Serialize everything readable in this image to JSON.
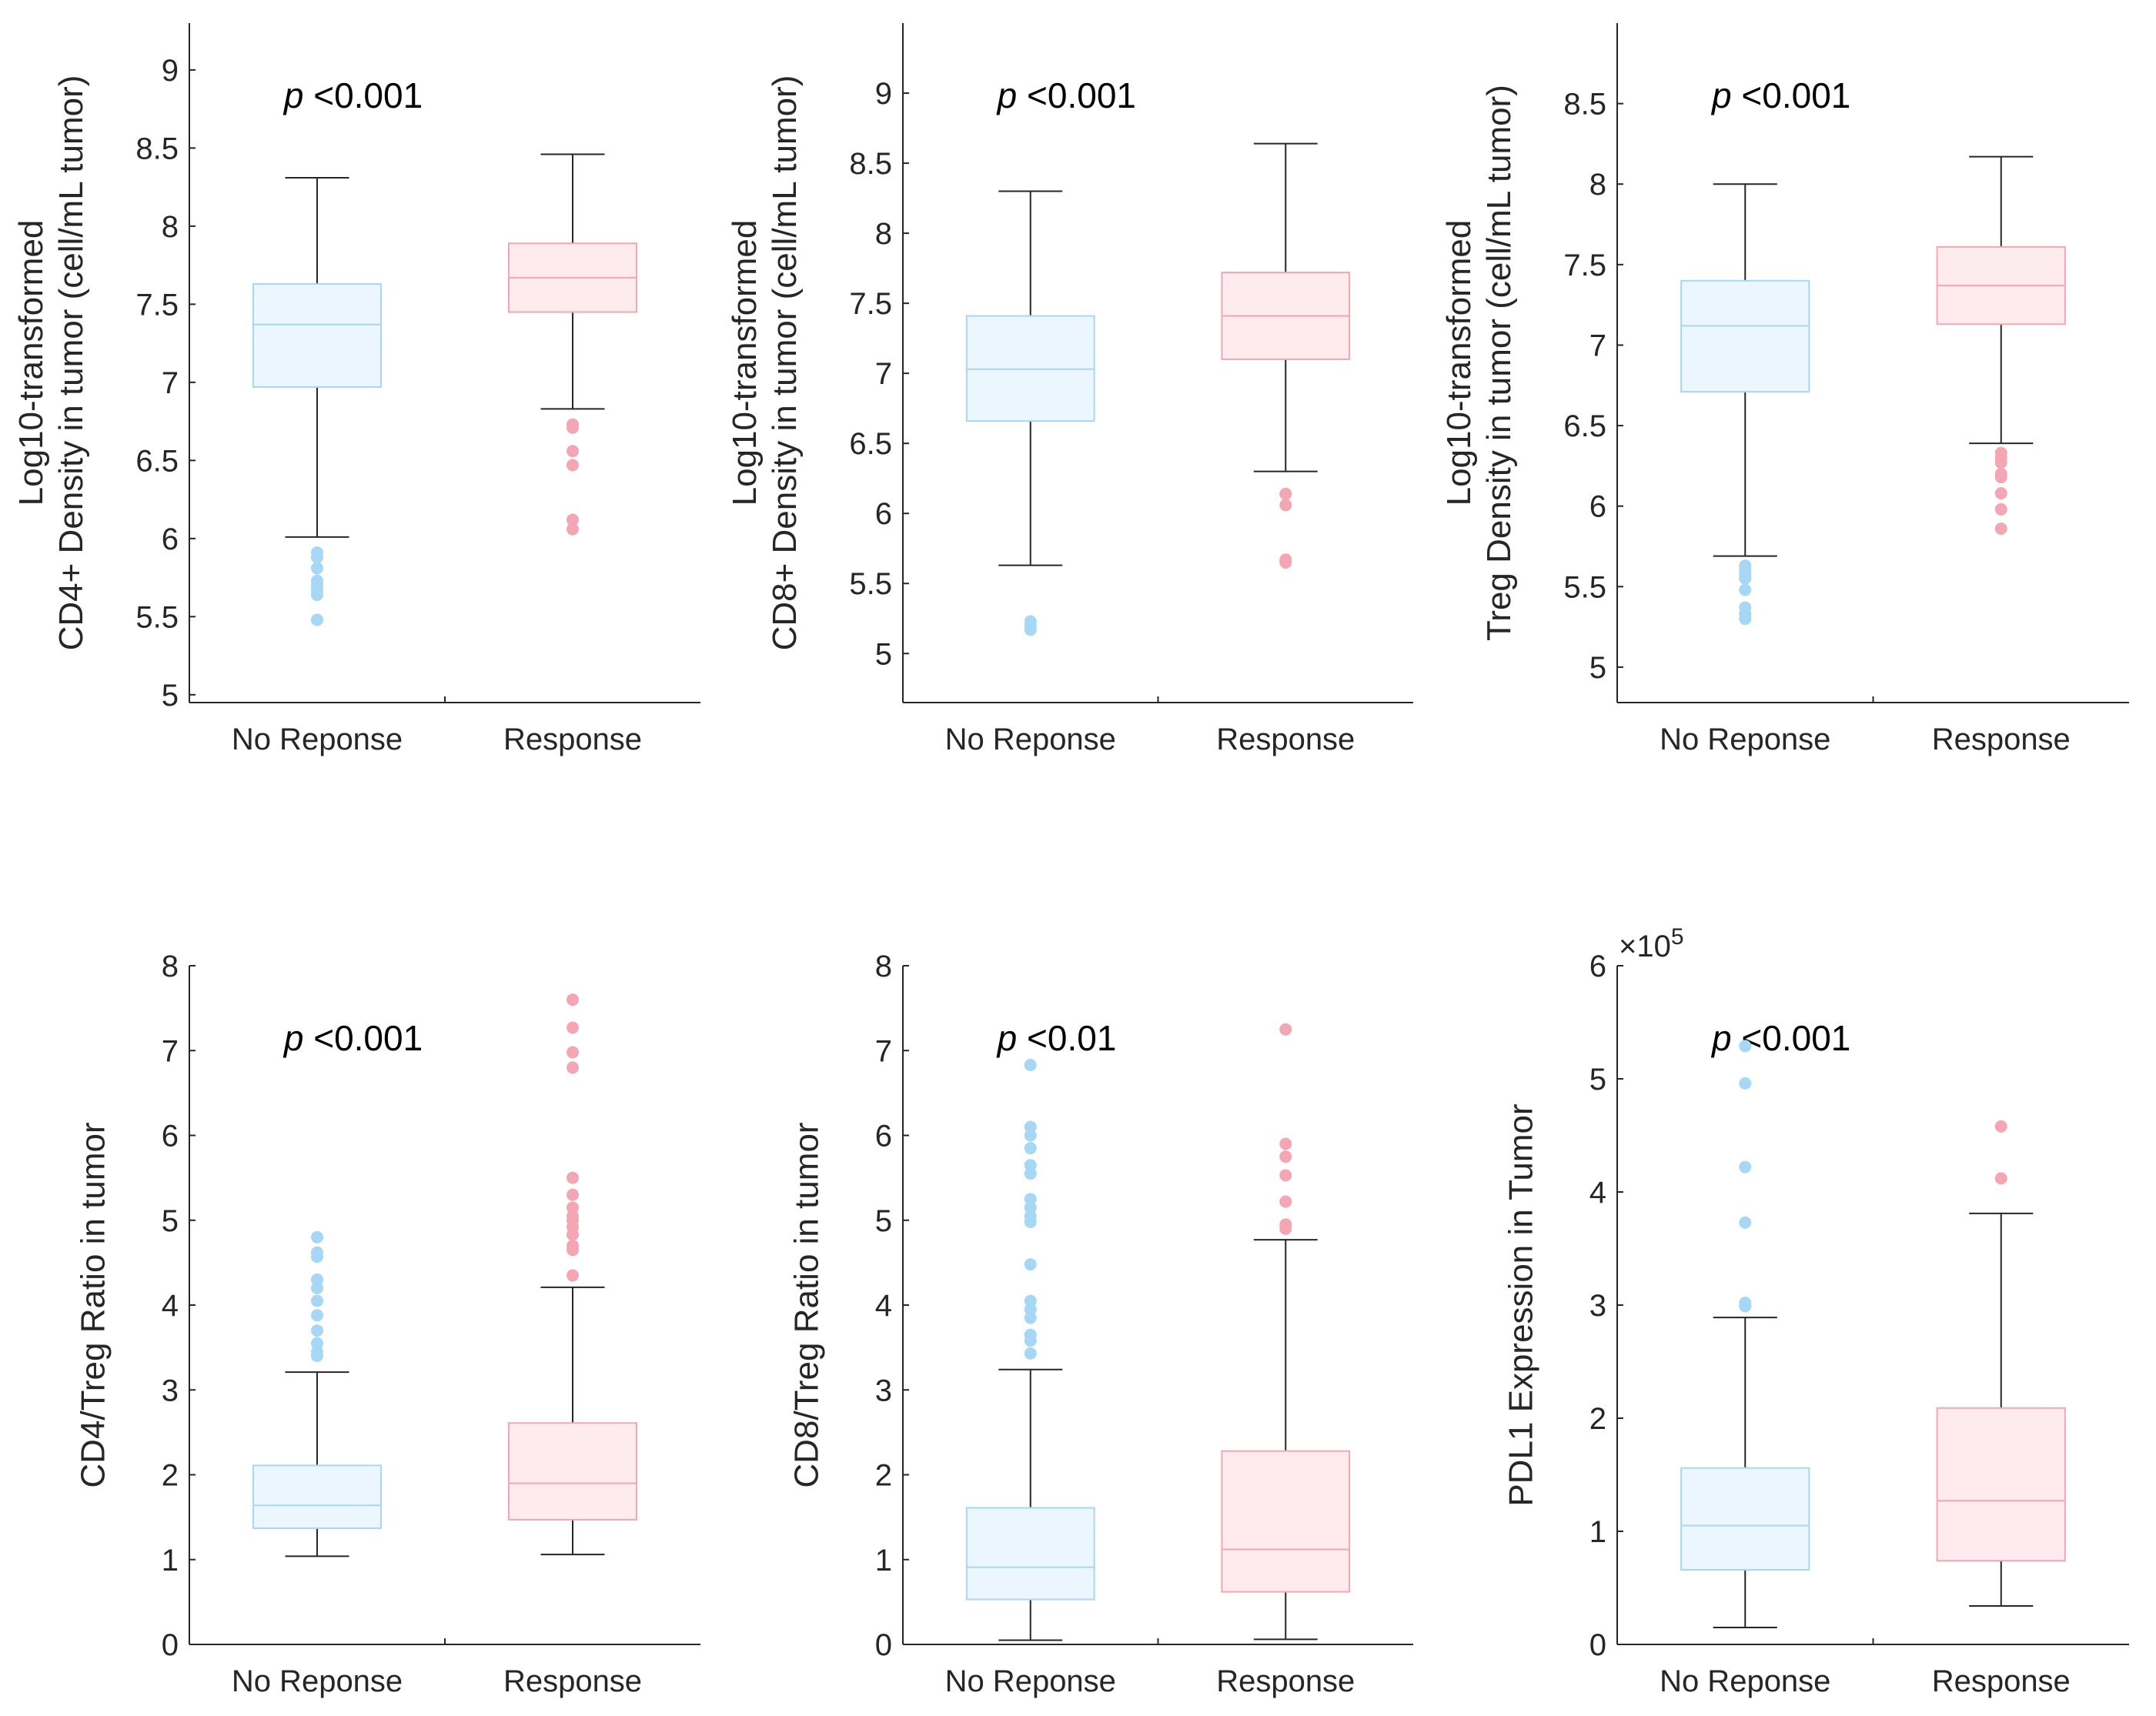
{
  "colors": {
    "no_response_box_fill": "#ECF6FE",
    "no_response_box_edge": "#A6D8F5",
    "no_response_outlier": "#A6D8F5",
    "response_box_fill": "#FDEBEE",
    "response_box_edge": "#F4A6B4",
    "response_outlier": "#F4A6B4",
    "axis": "#262626"
  },
  "chart_data": [
    {
      "type": "box",
      "ylabel": [
        "Log10-transformed",
        "CD4+ Density in tumor (cell/mL tumor)"
      ],
      "ylim": [
        4.95,
        9.3
      ],
      "yticks": [
        5,
        5.5,
        6,
        6.5,
        7,
        7.5,
        8,
        8.5,
        9
      ],
      "ytick_labels": [
        "5",
        "5.5",
        "6",
        "6.5",
        "7",
        "7.5",
        "8",
        "8.5",
        "9"
      ],
      "exponent_label": "",
      "categories": [
        "No Reponse",
        "Response"
      ],
      "annotation": {
        "p": "p",
        "text": " <0.001"
      },
      "groups": [
        {
          "name": "No Reponse",
          "q1": 6.97,
          "median": 7.37,
          "q3": 7.63,
          "whisker_low": 6.01,
          "whisker_high": 8.31,
          "outliers": [
            5.91,
            5.88,
            5.81,
            5.73,
            5.7,
            5.67,
            5.64,
            5.48
          ]
        },
        {
          "name": "Response",
          "q1": 7.45,
          "median": 7.67,
          "q3": 7.89,
          "whisker_low": 6.83,
          "whisker_high": 8.46,
          "outliers": [
            6.73,
            6.71,
            6.56,
            6.47,
            6.12,
            6.06
          ]
        }
      ]
    },
    {
      "type": "box",
      "ylabel": [
        "Log10-transformed",
        "CD8+ Density in tumor (cell/mL tumor)"
      ],
      "ylim": [
        4.65,
        9.5
      ],
      "yticks": [
        5,
        5.5,
        6,
        6.5,
        7,
        7.5,
        8,
        8.5,
        9
      ],
      "ytick_labels": [
        "5",
        "5.5",
        "6",
        "6.5",
        "7",
        "7.5",
        "8",
        "8.5",
        "9"
      ],
      "exponent_label": "",
      "categories": [
        "No Reponse",
        "Response"
      ],
      "annotation": {
        "p": "p",
        "text": " <0.001"
      },
      "groups": [
        {
          "name": "No Reponse",
          "q1": 6.66,
          "median": 7.03,
          "q3": 7.41,
          "whisker_low": 5.63,
          "whisker_high": 8.3,
          "outliers": [
            5.23,
            5.2,
            5.17
          ]
        },
        {
          "name": "Response",
          "q1": 7.1,
          "median": 7.41,
          "q3": 7.72,
          "whisker_low": 6.3,
          "whisker_high": 8.64,
          "outliers": [
            6.14,
            6.06,
            5.67,
            5.65
          ]
        }
      ]
    },
    {
      "type": "box",
      "ylabel": [
        "Log10-transformed",
        "Treg Density in tumor (cell/mL tumor)"
      ],
      "ylim": [
        4.78,
        9.0
      ],
      "yticks": [
        5,
        5.5,
        6,
        6.5,
        7,
        7.5,
        8,
        8.5
      ],
      "ytick_labels": [
        "5",
        "5.5",
        "6",
        "6.5",
        "7",
        "7.5",
        "8",
        "8.5"
      ],
      "exponent_label": "",
      "categories": [
        "No Reponse",
        "Response"
      ],
      "annotation": {
        "p": "p",
        "text": " <0.001"
      },
      "groups": [
        {
          "name": "No Reponse",
          "q1": 6.71,
          "median": 7.12,
          "q3": 7.4,
          "whisker_low": 5.69,
          "whisker_high": 8.0,
          "outliers": [
            5.63,
            5.6,
            5.57,
            5.55,
            5.48,
            5.37,
            5.33,
            5.3
          ]
        },
        {
          "name": "Response",
          "q1": 7.13,
          "median": 7.37,
          "q3": 7.61,
          "whisker_low": 6.39,
          "whisker_high": 8.17,
          "outliers": [
            6.33,
            6.3,
            6.27,
            6.2,
            6.18,
            6.08,
            5.98,
            5.86
          ]
        }
      ]
    },
    {
      "type": "box",
      "ylabel": [
        "CD4/Treg Ratio in tumor"
      ],
      "ylim": [
        0,
        8
      ],
      "yticks": [
        0,
        1,
        2,
        3,
        4,
        5,
        6,
        7,
        8
      ],
      "ytick_labels": [
        "0",
        "1",
        "2",
        "3",
        "4",
        "5",
        "6",
        "7",
        "8"
      ],
      "exponent_label": "",
      "categories": [
        "No Reponse",
        "Response"
      ],
      "annotation": {
        "p": "p",
        "text": " <0.001"
      },
      "groups": [
        {
          "name": "No Reponse",
          "q1": 1.37,
          "median": 1.64,
          "q3": 2.11,
          "whisker_low": 1.04,
          "whisker_high": 3.21,
          "outliers": [
            3.4,
            3.45,
            3.55,
            3.7,
            3.88,
            4.05,
            4.2,
            4.3,
            4.57,
            4.62,
            4.8
          ]
        },
        {
          "name": "Response",
          "q1": 1.47,
          "median": 1.9,
          "q3": 2.61,
          "whisker_low": 1.06,
          "whisker_high": 4.21,
          "outliers": [
            4.35,
            4.65,
            4.7,
            4.83,
            4.92,
            5.0,
            5.05,
            5.15,
            5.3,
            5.5,
            6.8,
            6.98,
            7.27,
            7.6
          ]
        }
      ]
    },
    {
      "type": "box",
      "ylabel": [
        "CD8/Treg Ratio in tumor"
      ],
      "ylim": [
        0,
        8
      ],
      "yticks": [
        0,
        1,
        2,
        3,
        4,
        5,
        6,
        7,
        8
      ],
      "ytick_labels": [
        "0",
        "1",
        "2",
        "3",
        "4",
        "5",
        "6",
        "7",
        "8"
      ],
      "exponent_label": "",
      "categories": [
        "No Reponse",
        "Response"
      ],
      "annotation": {
        "p": "p",
        "text": " <0.01"
      },
      "groups": [
        {
          "name": "No Reponse",
          "q1": 0.53,
          "median": 0.91,
          "q3": 1.61,
          "whisker_low": 0.05,
          "whisker_high": 3.24,
          "outliers": [
            3.43,
            3.58,
            3.65,
            3.85,
            3.95,
            4.05,
            4.48,
            4.98,
            5.05,
            5.15,
            5.25,
            5.55,
            5.65,
            5.85,
            6.0,
            6.1,
            6.83
          ]
        },
        {
          "name": "Response",
          "q1": 0.62,
          "median": 1.12,
          "q3": 2.28,
          "whisker_low": 0.06,
          "whisker_high": 4.77,
          "outliers": [
            4.9,
            4.95,
            5.22,
            5.53,
            5.75,
            5.9,
            7.25
          ]
        }
      ]
    },
    {
      "type": "box",
      "ylabel": [
        "PDL1 Expression in Tumor"
      ],
      "ylim": [
        0,
        6
      ],
      "yticks": [
        0,
        1,
        2,
        3,
        4,
        5,
        6
      ],
      "ytick_labels": [
        "0",
        "1",
        "2",
        "3",
        "4",
        "5",
        "6"
      ],
      "exponent_label": "×10",
      "exponent_power": "5",
      "categories": [
        "No Reponse",
        "Response"
      ],
      "annotation": {
        "p": "p",
        "text": " <0.001"
      },
      "groups": [
        {
          "name": "No Reponse",
          "q1": 0.66,
          "median": 1.05,
          "q3": 1.56,
          "whisker_low": 0.15,
          "whisker_high": 2.89,
          "outliers": [
            2.99,
            3.02,
            3.73,
            4.22,
            4.96,
            5.29
          ]
        },
        {
          "name": "Response",
          "q1": 0.74,
          "median": 1.27,
          "q3": 2.09,
          "whisker_low": 0.34,
          "whisker_high": 3.81,
          "outliers": [
            4.12,
            4.58
          ]
        }
      ]
    }
  ]
}
